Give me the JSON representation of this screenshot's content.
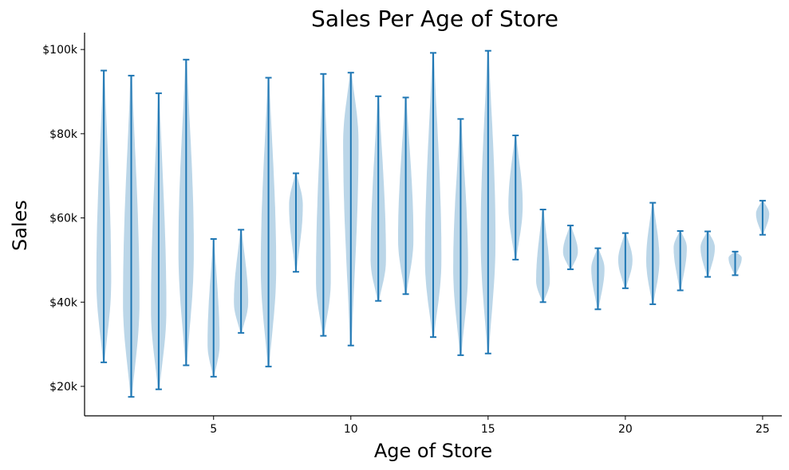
{
  "chart_data": {
    "type": "violin",
    "title": "Sales Per Age of Store",
    "xlabel": "Age of Store",
    "ylabel": "Sales",
    "xlim": [
      0.3,
      25.7
    ],
    "ylim": [
      13000,
      104000
    ],
    "x_ticks": [
      5,
      10,
      15,
      20,
      25
    ],
    "y_ticks": [
      20000,
      40000,
      60000,
      80000,
      100000
    ],
    "y_tick_labels": [
      "$20k",
      "$40k",
      "$60k",
      "$80k",
      "$100k"
    ],
    "color": "#1f77b4",
    "series": [
      {
        "age": 1,
        "min": 25700,
        "max": 95000,
        "peak": 45000,
        "halfwidth": 0.27
      },
      {
        "age": 2,
        "min": 17500,
        "max": 93800,
        "peak": 40000,
        "halfwidth": 0.3
      },
      {
        "age": 3,
        "min": 19300,
        "max": 89600,
        "peak": 38000,
        "halfwidth": 0.28
      },
      {
        "age": 4,
        "min": 25000,
        "max": 97600,
        "peak": 52000,
        "halfwidth": 0.28
      },
      {
        "age": 5,
        "min": 22300,
        "max": 55000,
        "peak": 30000,
        "halfwidth": 0.22
      },
      {
        "age": 6,
        "min": 32700,
        "max": 57200,
        "peak": 40000,
        "halfwidth": 0.26
      },
      {
        "age": 7,
        "min": 24700,
        "max": 93300,
        "peak": 48000,
        "halfwidth": 0.28
      },
      {
        "age": 8,
        "min": 47200,
        "max": 70600,
        "peak": 63000,
        "halfwidth": 0.25
      },
      {
        "age": 9,
        "min": 32000,
        "max": 94200,
        "peak": 45000,
        "halfwidth": 0.27
      },
      {
        "age": 10,
        "min": 29700,
        "max": 94500,
        "peak": 78000,
        "halfwidth": 0.28
      },
      {
        "age": 11,
        "min": 40300,
        "max": 88900,
        "peak": 50000,
        "halfwidth": 0.28
      },
      {
        "age": 12,
        "min": 41900,
        "max": 88600,
        "peak": 55000,
        "halfwidth": 0.28
      },
      {
        "age": 13,
        "min": 31700,
        "max": 99200,
        "peak": 50000,
        "halfwidth": 0.3
      },
      {
        "age": 14,
        "min": 27400,
        "max": 83500,
        "peak": 48000,
        "halfwidth": 0.27
      },
      {
        "age": 15,
        "min": 27800,
        "max": 99700,
        "peak": 55000,
        "halfwidth": 0.27
      },
      {
        "age": 16,
        "min": 50100,
        "max": 79600,
        "peak": 63000,
        "halfwidth": 0.26
      },
      {
        "age": 17,
        "min": 40000,
        "max": 62000,
        "peak": 45000,
        "halfwidth": 0.25
      },
      {
        "age": 18,
        "min": 47800,
        "max": 58200,
        "peak": 52000,
        "halfwidth": 0.27
      },
      {
        "age": 19,
        "min": 38300,
        "max": 52800,
        "peak": 48000,
        "halfwidth": 0.24
      },
      {
        "age": 20,
        "min": 43300,
        "max": 56400,
        "peak": 50000,
        "halfwidth": 0.26
      },
      {
        "age": 21,
        "min": 39500,
        "max": 63600,
        "peak": 50000,
        "halfwidth": 0.24
      },
      {
        "age": 22,
        "min": 42800,
        "max": 56900,
        "peak": 53000,
        "halfwidth": 0.24
      },
      {
        "age": 23,
        "min": 46000,
        "max": 56800,
        "peak": 53000,
        "halfwidth": 0.26
      },
      {
        "age": 24,
        "min": 46400,
        "max": 52000,
        "peak": 50500,
        "halfwidth": 0.24
      },
      {
        "age": 25,
        "min": 56000,
        "max": 64100,
        "peak": 61000,
        "halfwidth": 0.24
      }
    ]
  }
}
